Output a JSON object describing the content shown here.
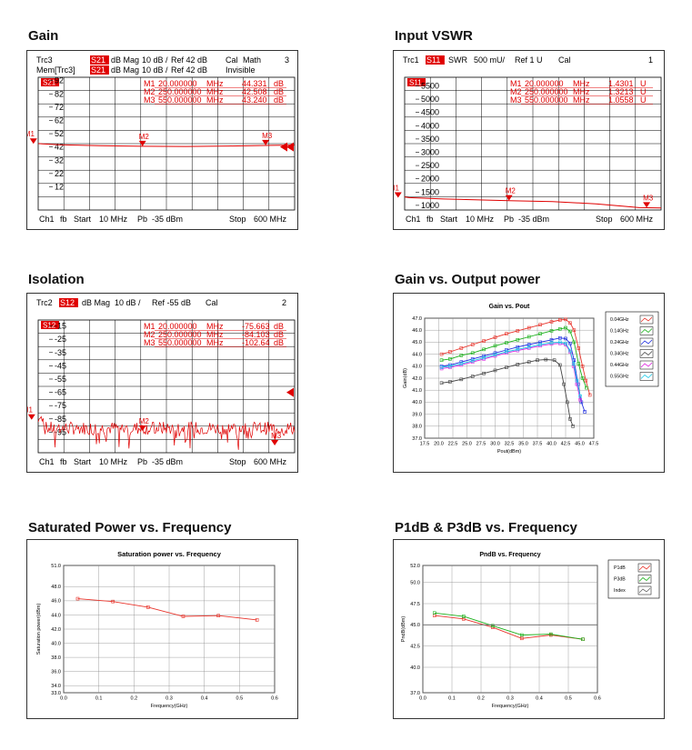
{
  "titles": {
    "gain": "Gain",
    "vswr": "Input VSWR",
    "isolation": "Isolation",
    "gain_vs_pout": "Gain vs. Output power",
    "sat_power": "Saturated Power vs. Frequency",
    "p1db": "P1dB & P3dB vs. Frequency"
  },
  "colors": {
    "trace": "#e00000",
    "grid": "#000000",
    "label_bg": "#e00000"
  },
  "vna_gain": {
    "header": {
      "line1": [
        "Trc3",
        "S21",
        "dB Mag",
        "10 dB /",
        "Ref 42 dB",
        "Cal",
        "Math",
        "3"
      ],
      "line2": [
        "Mem[Trc3]",
        "S21",
        "dB Mag",
        "10 dB /",
        "Ref 42 dB",
        "Invisible"
      ]
    },
    "tag": "S21",
    "markers": [
      {
        "name": "M1",
        "freq": "20.000000",
        "unit": "MHz",
        "value": "44.331",
        "vunit": "dB"
      },
      {
        "name": "M2",
        "freq": "250.000000",
        "unit": "MHz",
        "value": "42.508",
        "vunit": "dB"
      },
      {
        "name": "M3",
        "freq": "550.000000",
        "unit": "MHz",
        "value": "43.240",
        "vunit": "dB"
      }
    ],
    "yticks": [
      "92",
      "82",
      "72",
      "62",
      "52",
      "42",
      "32",
      "22",
      "12"
    ],
    "footer": [
      "Ch1",
      "fb",
      "Start",
      "10 MHz",
      "Pb",
      "-35 dBm",
      "Stop",
      "600 MHz"
    ],
    "trace": {
      "x": [
        10,
        20,
        60,
        150,
        250,
        350,
        450,
        550,
        600
      ],
      "y": [
        44.6,
        44.3,
        43.7,
        43.0,
        42.5,
        42.4,
        42.7,
        43.2,
        43.4
      ]
    },
    "ref_value": 42,
    "scale_per_div": 10
  },
  "vna_vswr": {
    "header": {
      "line1": [
        "Trc1",
        "S11",
        "SWR",
        "500 mU/",
        "Ref 1 U",
        "Cal",
        "1"
      ]
    },
    "tag": "S11",
    "markers": [
      {
        "name": "M1",
        "freq": "20.000000",
        "unit": "MHz",
        "value": "1.4301",
        "vunit": "U"
      },
      {
        "name": "M2",
        "freq": "250.000000",
        "unit": "MHz",
        "value": "1.3213",
        "vunit": "U"
      },
      {
        "name": "M3",
        "freq": "550.000000",
        "unit": "MHz",
        "value": "1.0558",
        "vunit": "U"
      }
    ],
    "yticks": [
      "5500",
      "5000",
      "4500",
      "4000",
      "3500",
      "3000",
      "2500",
      "2000",
      "1500",
      "1000"
    ],
    "footer": [
      "Ch1",
      "fb",
      "Start",
      "10 MHz",
      "Pb",
      "-35 dBm",
      "Stop",
      "600 MHz"
    ],
    "trace": {
      "x": [
        10,
        20,
        100,
        200,
        250,
        350,
        450,
        520,
        550,
        600
      ],
      "y": [
        1.46,
        1.43,
        1.38,
        1.34,
        1.32,
        1.28,
        1.2,
        1.1,
        1.056,
        1.04
      ]
    }
  },
  "vna_isolation": {
    "header": {
      "line1": [
        "Trc2",
        "S12",
        "dB Mag",
        "10 dB /",
        "Ref -55 dB",
        "Cal",
        "2"
      ]
    },
    "tag": "S12",
    "markers": [
      {
        "name": "M1",
        "freq": "20.000000",
        "unit": "MHz",
        "value": "-75.663",
        "vunit": "dB"
      },
      {
        "name": "M2",
        "freq": "250.000000",
        "unit": "MHz",
        "value": "-84.103",
        "vunit": "dB"
      },
      {
        "name": "M3",
        "freq": "550.000000",
        "unit": "MHz",
        "value": "-102.64",
        "vunit": "dB"
      }
    ],
    "yticks": [
      "-15",
      "-25",
      "-35",
      "-45",
      "-55",
      "-65",
      "-75",
      "-85",
      "-95"
    ],
    "footer": [
      "Ch1",
      "fb",
      "Start",
      "10 MHz",
      "Pb",
      "-35 dBm",
      "Stop",
      "600 MHz"
    ],
    "noise_floor": -82
  },
  "chart_data": [
    {
      "type": "line",
      "title": "Gain vs. Pout",
      "xlabel": "Pout(dBm)",
      "ylabel": "Gain(dB)",
      "xlim": [
        17.5,
        47.5
      ],
      "ylim": [
        37.0,
        47.0
      ],
      "xticks": [
        "17.5",
        "20.0",
        "22.5",
        "25.0",
        "27.5",
        "30.0",
        "32.5",
        "35.0",
        "37.5",
        "40.0",
        "42.5",
        "45.0",
        "47.5"
      ],
      "yticks": [
        "37.0",
        "38.0",
        "39.0",
        "40.0",
        "41.0",
        "42.0",
        "43.0",
        "44.0",
        "45.0",
        "46.0",
        "47.0"
      ],
      "series": [
        {
          "name": "0.04GHz",
          "color": "#e8342b",
          "x": [
            20.5,
            22,
            24,
            26,
            28,
            30,
            32,
            34,
            36,
            38,
            40,
            41.5,
            42.5,
            43.3,
            44,
            44.8,
            45.5,
            46.1,
            46.8
          ],
          "y": [
            44.0,
            44.2,
            44.5,
            44.8,
            45.1,
            45.4,
            45.7,
            45.95,
            46.2,
            46.45,
            46.7,
            46.85,
            46.9,
            46.6,
            46.0,
            44.5,
            43.0,
            41.8,
            40.6
          ]
        },
        {
          "name": "0.14GHz",
          "color": "#1ab01a",
          "x": [
            20.5,
            22,
            24,
            26,
            28,
            30,
            32,
            34,
            36,
            38,
            40,
            41.5,
            42.5,
            43.3,
            44,
            44.8,
            45.5,
            46.2
          ],
          "y": [
            43.5,
            43.6,
            43.9,
            44.1,
            44.4,
            44.7,
            44.95,
            45.2,
            45.45,
            45.7,
            45.95,
            46.1,
            46.2,
            45.9,
            45.0,
            43.2,
            42.0,
            41.2
          ]
        },
        {
          "name": "0.24GHz",
          "color": "#1d2de0",
          "x": [
            20.5,
            22,
            24,
            26,
            28,
            30,
            32,
            34,
            36,
            38,
            40,
            41.5,
            42.5,
            43.3,
            44,
            44.7,
            45.3,
            45.9
          ],
          "y": [
            43.0,
            43.1,
            43.35,
            43.6,
            43.85,
            44.1,
            44.35,
            44.6,
            44.8,
            45.0,
            45.2,
            45.35,
            45.3,
            44.9,
            43.5,
            41.5,
            40.0,
            39.2
          ]
        },
        {
          "name": "0.34GHz",
          "color": "#444444",
          "x": [
            20.5,
            22,
            24,
            26,
            28,
            30,
            32,
            34,
            36,
            37.5,
            39,
            40.5,
            41.5,
            42.2,
            42.8,
            43.3,
            43.8
          ],
          "y": [
            41.6,
            41.7,
            41.9,
            42.15,
            42.4,
            42.65,
            42.9,
            43.15,
            43.35,
            43.5,
            43.55,
            43.5,
            43.1,
            41.5,
            40.0,
            38.6,
            38.0
          ]
        },
        {
          "name": "0.44GHz",
          "color": "#e020e0",
          "x": [
            20.5,
            22,
            24,
            26,
            28,
            30,
            32,
            34,
            36,
            38,
            40,
            41.5,
            42.5,
            43.3,
            43.9,
            44.5,
            45.1
          ],
          "y": [
            42.8,
            42.9,
            43.1,
            43.35,
            43.6,
            43.85,
            44.1,
            44.3,
            44.5,
            44.7,
            44.85,
            44.9,
            44.8,
            44.2,
            43.0,
            41.5,
            40.2
          ]
        },
        {
          "name": "0.55GHz",
          "color": "#18c8e8",
          "x": [
            20.5,
            22,
            24,
            26,
            28,
            30,
            32,
            34,
            36,
            38,
            40,
            41.5,
            42.5,
            43.3,
            43.9,
            44.5,
            45.1
          ],
          "y": [
            42.9,
            43.0,
            43.2,
            43.45,
            43.7,
            43.95,
            44.2,
            44.4,
            44.6,
            44.8,
            44.95,
            45.0,
            44.9,
            44.3,
            43.2,
            41.8,
            40.5
          ]
        }
      ]
    },
    {
      "type": "line",
      "title": "Saturation power vs. Frequency",
      "xlabel": "Frequency(GHz)",
      "ylabel": "Saturation power(dBm)",
      "xlim": [
        0.0,
        0.6
      ],
      "ylim": [
        33.0,
        51.0
      ],
      "xticks": [
        "0.0",
        "0.1",
        "0.2",
        "0.3",
        "0.4",
        "0.5",
        "0.6"
      ],
      "yticks": [
        "33.0",
        "34.0",
        "36.0",
        "38.0",
        "40.0",
        "42.0",
        "44.0",
        "46.0",
        "48.0",
        "51.0"
      ],
      "series": [
        {
          "color": "#e8342b",
          "x": [
            0.04,
            0.14,
            0.24,
            0.34,
            0.44,
            0.55
          ],
          "y": [
            46.3,
            45.9,
            45.1,
            43.8,
            43.9,
            43.3
          ]
        }
      ]
    },
    {
      "type": "line",
      "title": "PndB vs. Frequency",
      "xlabel": "Frequency(GHz)",
      "ylabel": "PndB(dBm)",
      "xlim": [
        0.0,
        0.6
      ],
      "ylim": [
        37.0,
        52.0
      ],
      "xticks": [
        "0.0",
        "0.1",
        "0.2",
        "0.3",
        "0.4",
        "0.5",
        "0.6"
      ],
      "yticks": [
        "37.0",
        "40.0",
        "42.5",
        "45.0",
        "47.5",
        "50.0",
        "52.0"
      ],
      "legend": [
        "P1dB",
        "P3dB",
        "Index"
      ],
      "series": [
        {
          "name": "P1dB",
          "color": "#e8342b",
          "x": [
            0.04,
            0.14,
            0.24,
            0.34,
            0.44,
            0.55
          ],
          "y": [
            46.1,
            45.7,
            44.7,
            43.4,
            43.8,
            43.3
          ]
        },
        {
          "name": "P3dB",
          "color": "#1ab01a",
          "x": [
            0.04,
            0.14,
            0.24,
            0.34,
            0.44,
            0.55
          ],
          "y": [
            46.4,
            46.0,
            44.9,
            43.8,
            43.9,
            43.3
          ]
        },
        {
          "name": "Index",
          "color": "#666666",
          "x": [
            0.0,
            0.6
          ],
          "y": [
            45.0,
            45.0
          ]
        }
      ]
    }
  ]
}
